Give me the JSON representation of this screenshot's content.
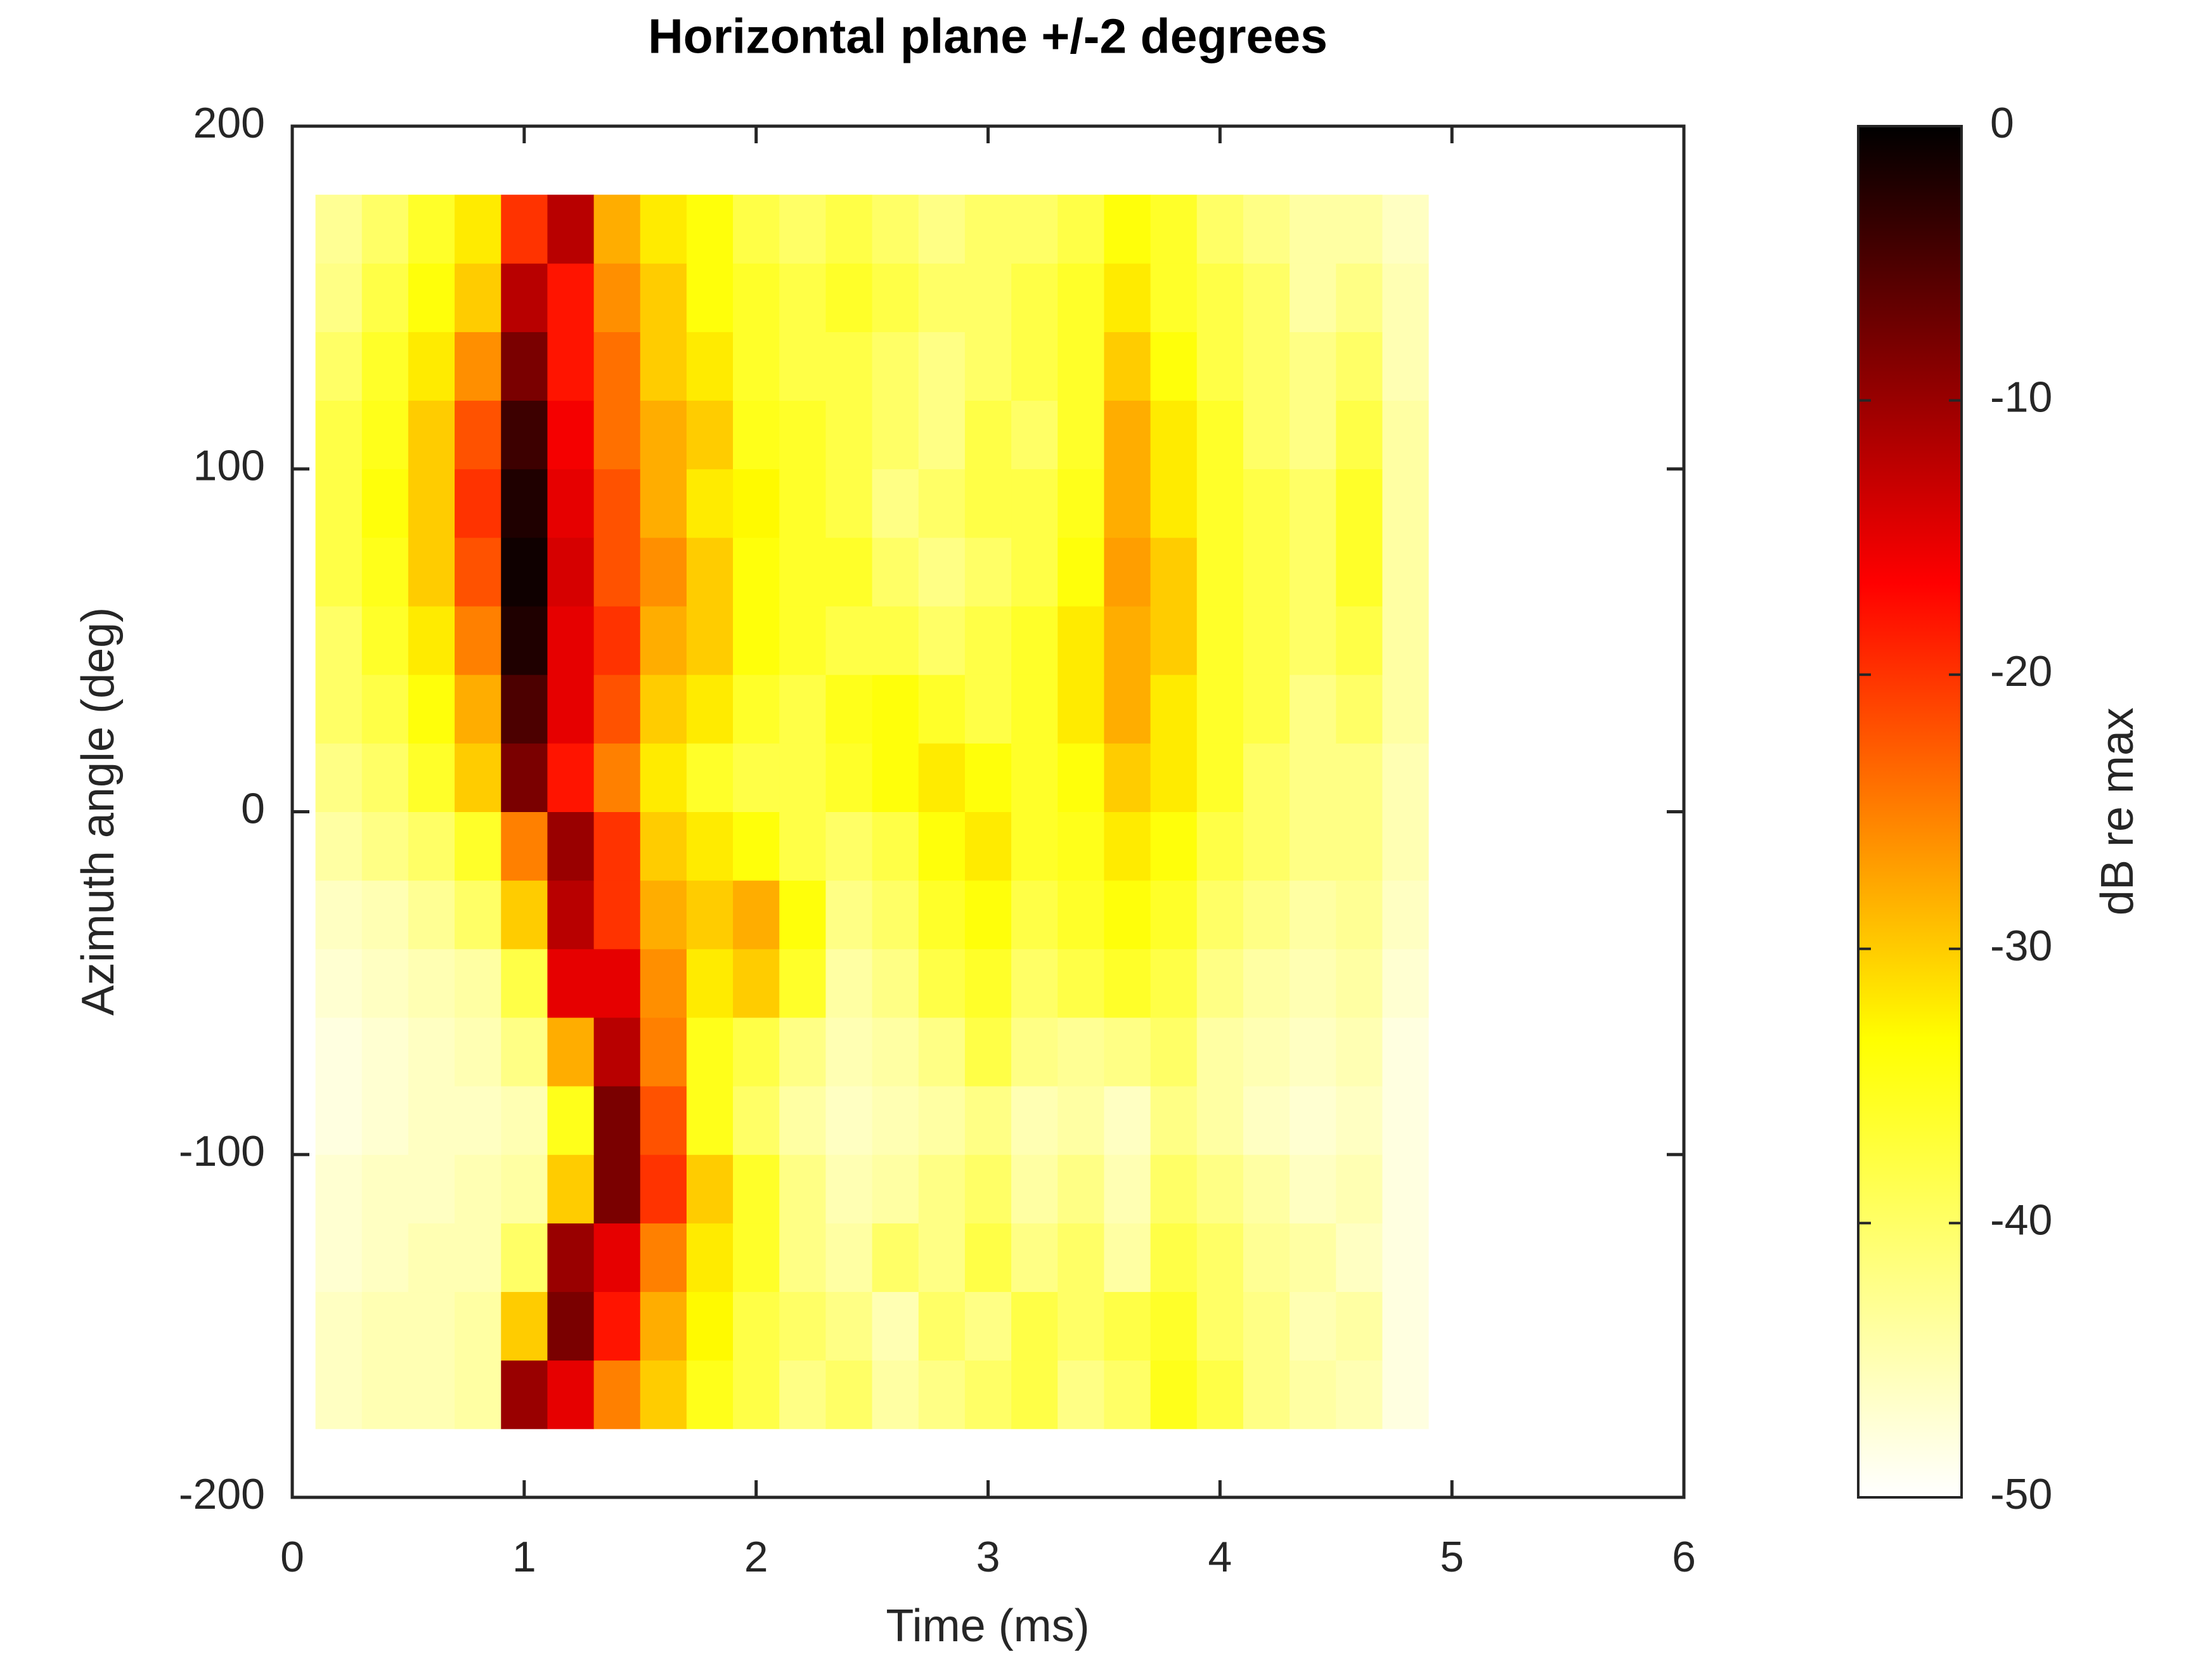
{
  "chart_data": {
    "type": "heatmap",
    "title": "Horizontal plane +/-2 degrees",
    "x_label": "Time (ms)",
    "y_label": "Azimuth angle (deg)",
    "colorbar_label": "dB re max",
    "x": [
      0.2,
      0.4,
      0.6,
      0.8,
      1.0,
      1.2,
      1.4,
      1.6,
      1.8,
      2.0,
      2.2,
      2.4,
      2.6,
      2.8,
      3.0,
      3.2,
      3.4,
      3.6,
      3.8,
      4.0,
      4.2,
      4.4,
      4.6,
      4.8,
      5.0
    ],
    "y": [
      -170,
      -150,
      -130,
      -110,
      -90,
      -70,
      -50,
      -30,
      -10,
      10,
      30,
      50,
      70,
      90,
      110,
      130,
      150,
      170
    ],
    "z": [
      [
        -46,
        -45,
        -45,
        -44,
        -10,
        -15,
        -25,
        -30,
        -35,
        -38,
        -42,
        -40,
        -44,
        -42,
        -40,
        -38,
        -42,
        -40,
        -35,
        -38,
        -42,
        -44,
        -45,
        -48,
        -50
      ],
      [
        -46,
        -45,
        -45,
        -44,
        -30,
        -8,
        -18,
        -28,
        -33,
        -38,
        -40,
        -42,
        -45,
        -40,
        -42,
        -38,
        -40,
        -38,
        -36,
        -40,
        -42,
        -45,
        -44,
        -48,
        -50
      ],
      [
        -47,
        -46,
        -45,
        -45,
        -40,
        -10,
        -15,
        -25,
        -32,
        -36,
        -42,
        -44,
        -40,
        -42,
        -38,
        -42,
        -40,
        -44,
        -38,
        -40,
        -43,
        -44,
        -46,
        -48,
        -50
      ],
      [
        -47,
        -46,
        -46,
        -45,
        -44,
        -30,
        -8,
        -20,
        -30,
        -36,
        -42,
        -45,
        -44,
        -42,
        -40,
        -44,
        -42,
        -45,
        -40,
        -42,
        -44,
        -46,
        -45,
        -48,
        -50
      ],
      [
        -48,
        -47,
        -46,
        -46,
        -45,
        -35,
        -8,
        -22,
        -35,
        -40,
        -44,
        -46,
        -45,
        -44,
        -42,
        -45,
        -44,
        -46,
        -42,
        -44,
        -46,
        -47,
        -46,
        -48,
        -50
      ],
      [
        -48,
        -47,
        -46,
        -45,
        -42,
        -28,
        -12,
        -25,
        -35,
        -38,
        -42,
        -45,
        -44,
        -42,
        -38,
        -42,
        -43,
        -42,
        -40,
        -44,
        -45,
        -46,
        -45,
        -48,
        -50
      ],
      [
        -47,
        -46,
        -45,
        -44,
        -38,
        -15,
        -15,
        -26,
        -32,
        -30,
        -36,
        -44,
        -42,
        -38,
        -36,
        -40,
        -38,
        -36,
        -38,
        -42,
        -44,
        -45,
        -44,
        -47,
        -50
      ],
      [
        -46,
        -45,
        -43,
        -40,
        -30,
        -12,
        -20,
        -28,
        -30,
        -28,
        -34,
        -42,
        -40,
        -36,
        -34,
        -38,
        -36,
        -34,
        -36,
        -40,
        -42,
        -44,
        -43,
        -46,
        -50
      ],
      [
        -44,
        -42,
        -40,
        -36,
        -25,
        -10,
        -20,
        -30,
        -32,
        -34,
        -38,
        -40,
        -38,
        -34,
        -32,
        -36,
        -35,
        -32,
        -34,
        -38,
        -40,
        -42,
        -42,
        -45,
        -50
      ],
      [
        -42,
        -40,
        -36,
        -30,
        -8,
        -18,
        -25,
        -32,
        -36,
        -38,
        -38,
        -36,
        -34,
        -32,
        -34,
        -36,
        -34,
        -30,
        -32,
        -36,
        -40,
        -42,
        -42,
        -45,
        -50
      ],
      [
        -40,
        -38,
        -34,
        -28,
        -5,
        -15,
        -22,
        -30,
        -32,
        -36,
        -38,
        -35,
        -34,
        -36,
        -38,
        -36,
        -32,
        -28,
        -32,
        -36,
        -38,
        -42,
        -40,
        -44,
        -50
      ],
      [
        -40,
        -36,
        -32,
        -25,
        -2,
        -15,
        -20,
        -28,
        -30,
        -34,
        -36,
        -38,
        -38,
        -40,
        -38,
        -36,
        -32,
        -28,
        -30,
        -36,
        -38,
        -40,
        -38,
        -44,
        -50
      ],
      [
        -38,
        -35,
        -30,
        -22,
        -1,
        -14,
        -22,
        -26,
        -30,
        -34,
        -36,
        -36,
        -40,
        -42,
        -40,
        -38,
        -34,
        -27,
        -30,
        -36,
        -38,
        -40,
        -36,
        -44,
        -50
      ],
      [
        -38,
        -34,
        -30,
        -20,
        -2,
        -15,
        -22,
        -28,
        -32,
        -33,
        -36,
        -38,
        -42,
        -40,
        -38,
        -38,
        -35,
        -28,
        -32,
        -36,
        -38,
        -40,
        -36,
        -44,
        -50
      ],
      [
        -38,
        -35,
        -30,
        -22,
        -4,
        -16,
        -24,
        -28,
        -30,
        -35,
        -36,
        -38,
        -40,
        -42,
        -38,
        -40,
        -36,
        -28,
        -32,
        -36,
        -40,
        -42,
        -38,
        -44,
        -50
      ],
      [
        -40,
        -36,
        -32,
        -26,
        -8,
        -18,
        -24,
        -30,
        -32,
        -36,
        -38,
        -38,
        -40,
        -42,
        -40,
        -38,
        -36,
        -30,
        -34,
        -38,
        -40,
        -42,
        -40,
        -45,
        -50
      ],
      [
        -42,
        -38,
        -34,
        -30,
        -12,
        -18,
        -26,
        -30,
        -34,
        -36,
        -38,
        -36,
        -38,
        -40,
        -40,
        -38,
        -36,
        -32,
        -36,
        -38,
        -40,
        -44,
        -42,
        -45,
        -50
      ],
      [
        -43,
        -40,
        -36,
        -32,
        -20,
        -12,
        -28,
        -32,
        -34,
        -38,
        -40,
        -38,
        -40,
        -42,
        -40,
        -40,
        -38,
        -34,
        -36,
        -40,
        -42,
        -44,
        -44,
        -46,
        -50
      ]
    ],
    "xlim": [
      0,
      6
    ],
    "xticks": [
      0,
      1,
      2,
      3,
      4,
      5,
      6
    ],
    "ylim": [
      -200,
      200
    ],
    "yticks": [
      -200,
      -100,
      0,
      100,
      200
    ],
    "clim": [
      -50,
      0
    ],
    "cticks": [
      -50,
      -40,
      -30,
      -20,
      -10,
      0
    ],
    "colormap": [
      "#ffffff",
      "#ffff00",
      "#ff0000",
      "#000000"
    ]
  }
}
